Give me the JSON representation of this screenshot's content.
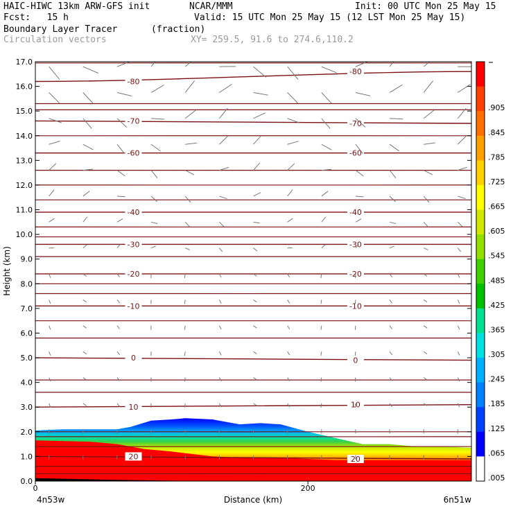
{
  "header": {
    "line1_left": "HAIC-HIWC 13km ARW-GFS init",
    "line1_mid": "NCAR/MMM",
    "line1_right": "Init: 00 UTC Mon 25 May 15",
    "line2_left": "Fcst:   15 h",
    "line2_right": "Valid: 15 UTC Mon 25 May 15 (12 LST Mon 25 May 15)",
    "line3_left": "Boundary Layer Tracer",
    "line3_mid": "(fraction)",
    "line4_left": "Circulation vectors",
    "line4_mid": "XY= 259.5, 91.6 to 274.6,110.2"
  },
  "chart_data": {
    "type": "heatmap",
    "title": "Boundary Layer Tracer",
    "xlabel": "Distance (km)",
    "ylabel": "Height (km)",
    "xlim": [
      0,
      320
    ],
    "ylim": [
      0,
      17
    ],
    "x_ticks": [
      "0",
      "200"
    ],
    "x_end_labels": [
      "4n53w",
      "6n51w"
    ],
    "y_ticks": [
      "0.0",
      "1.0",
      "2.0",
      "3.0",
      "4.0",
      "5.0",
      "6.0",
      "7.0",
      "8.0",
      "9.0",
      "10.0",
      "11.0",
      "12.0",
      "13.0",
      "14.0",
      "15.0",
      "16.0",
      "17.0"
    ],
    "colorbar_labels": [
      ".005",
      ".065",
      ".125",
      ".185",
      ".245",
      ".305",
      ".365",
      ".425",
      ".485",
      ".545",
      ".605",
      ".665",
      ".725",
      ".785",
      ".845",
      ".905"
    ],
    "colorbar_colors": [
      "#ffffff",
      "#0000ff",
      "#0040ff",
      "#0080ff",
      "#00b0ff",
      "#00e0e0",
      "#00e090",
      "#00c000",
      "#40d000",
      "#90e000",
      "#d0e800",
      "#ffff00",
      "#ffd000",
      "#ffa000",
      "#ff7000",
      "#ff4000",
      "#ff0000"
    ],
    "bl_top_km": [
      [
        0,
        2.05
      ],
      [
        20,
        2.1
      ],
      [
        40,
        2.1
      ],
      [
        60,
        2.1
      ],
      [
        70,
        2.2
      ],
      [
        85,
        2.45
      ],
      [
        100,
        2.5
      ],
      [
        110,
        2.55
      ],
      [
        130,
        2.5
      ],
      [
        140,
        2.4
      ],
      [
        150,
        2.3
      ],
      [
        165,
        2.35
      ],
      [
        180,
        2.3
      ],
      [
        200,
        2.0
      ],
      [
        220,
        1.75
      ],
      [
        240,
        1.5
      ],
      [
        260,
        1.5
      ],
      [
        280,
        1.4
      ],
      [
        300,
        1.4
      ],
      [
        320,
        1.35
      ]
    ],
    "bl_red_top_km": [
      [
        0,
        1.65
      ],
      [
        40,
        1.6
      ],
      [
        60,
        1.5
      ],
      [
        80,
        1.3
      ],
      [
        100,
        1.2
      ],
      [
        130,
        1.0
      ],
      [
        150,
        0.95
      ],
      [
        180,
        0.95
      ],
      [
        200,
        0.9
      ],
      [
        220,
        0.85
      ],
      [
        260,
        0.85
      ],
      [
        320,
        0.85
      ]
    ],
    "temperature_contours": [
      {
        "label": "-80",
        "y": [
          16.2,
          16.6
        ]
      },
      {
        "label": "-70",
        "y": [
          14.6,
          14.5
        ]
      },
      {
        "label": "-60",
        "y": [
          13.3,
          13.3
        ]
      },
      {
        "label": "-40",
        "y": [
          10.9,
          10.9
        ]
      },
      {
        "label": "-30",
        "y": [
          9.6,
          9.6
        ]
      },
      {
        "label": "-20",
        "y": [
          8.4,
          8.4
        ]
      },
      {
        "label": "-10",
        "y": [
          7.1,
          7.1
        ]
      },
      {
        "label": "0",
        "y": [
          5.0,
          4.9
        ]
      },
      {
        "label": "10",
        "y": [
          3.0,
          3.1
        ]
      },
      {
        "label": "20",
        "y": [
          1.0,
          0.9
        ]
      }
    ],
    "unlabeled_contours": [
      16.95,
      15.3,
      15.05,
      14.0,
      12.6,
      12.0,
      11.4,
      10.3,
      9.9,
      9.1,
      8.0,
      7.6,
      6.5,
      5.8,
      4.1,
      3.6,
      2.0,
      1.8,
      1.4,
      0.6,
      0.3
    ]
  }
}
